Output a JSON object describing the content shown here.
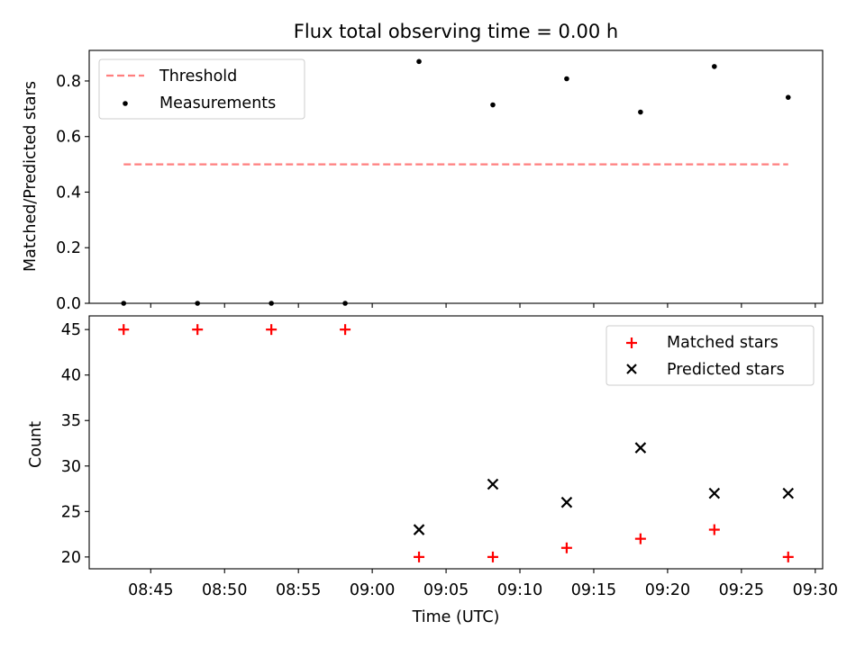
{
  "title": "Flux total observing time = 0.00 h",
  "chart_data": [
    {
      "type": "scatter",
      "ylabel": "Matched/Predicted stars",
      "ylim": [
        0,
        0.91
      ],
      "yticks": [
        "0.0",
        "0.2",
        "0.4",
        "0.6",
        "0.8"
      ],
      "ytick_values": [
        0,
        0.2,
        0.4,
        0.6,
        0.8
      ],
      "legend_position": "upper-left",
      "series": [
        {
          "name": "Threshold",
          "kind": "dashed-line",
          "color": "#ff7f7f",
          "x": [
            "08:43:10",
            "09:28:10"
          ],
          "y": [
            0.5,
            0.5
          ]
        },
        {
          "name": "Measurements",
          "kind": "dot",
          "color": "#000000",
          "x": [
            "08:43:10",
            "08:48:10",
            "08:53:10",
            "08:58:10",
            "09:03:10",
            "09:08:10",
            "09:13:10",
            "09:18:10",
            "09:23:10",
            "09:28:10"
          ],
          "y": [
            0.0,
            0.0,
            0.0,
            0.0,
            0.87,
            0.714,
            0.808,
            0.688,
            0.852,
            0.741
          ]
        }
      ]
    },
    {
      "type": "scatter",
      "xlabel": "Time (UTC)",
      "ylabel": "Count",
      "ylim": [
        18.7,
        46.5
      ],
      "yticks": [
        "20",
        "25",
        "30",
        "35",
        "40",
        "45"
      ],
      "ytick_values": [
        20,
        25,
        30,
        35,
        40,
        45
      ],
      "xlim": [
        "08:40:50",
        "09:30:30"
      ],
      "xticks": [
        "08:45",
        "08:50",
        "08:55",
        "09:00",
        "09:05",
        "09:10",
        "09:15",
        "09:20",
        "09:25",
        "09:30"
      ],
      "legend_position": "upper-right",
      "series": [
        {
          "name": "Matched stars",
          "kind": "plus",
          "color": "#ff0000",
          "x": [
            "08:43:10",
            "08:48:10",
            "08:53:10",
            "08:58:10",
            "09:03:10",
            "09:08:10",
            "09:13:10",
            "09:18:10",
            "09:23:10",
            "09:28:10"
          ],
          "y": [
            45,
            45,
            45,
            45,
            20,
            20,
            21,
            22,
            23,
            20
          ]
        },
        {
          "name": "Predicted stars",
          "kind": "x",
          "color": "#000000",
          "x": [
            "09:03:10",
            "09:08:10",
            "09:13:10",
            "09:18:10",
            "09:23:10",
            "09:28:10"
          ],
          "y": [
            23,
            28,
            26,
            32,
            27,
            27
          ]
        }
      ]
    }
  ]
}
